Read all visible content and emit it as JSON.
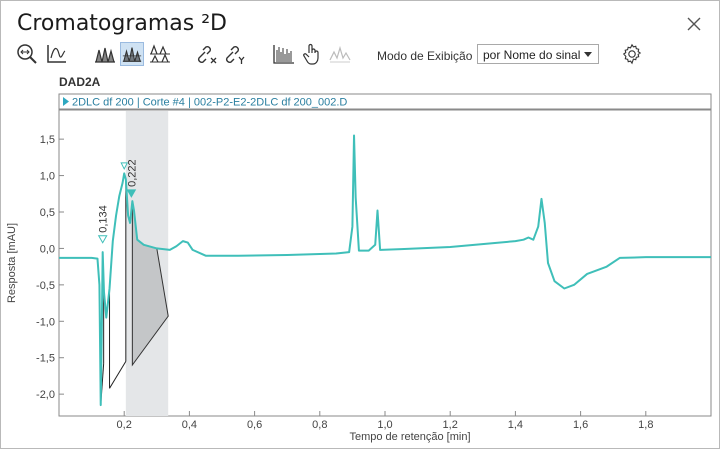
{
  "window": {
    "title": "Cromatogramas ²D"
  },
  "toolbar": {
    "display_mode_label": "Modo de Exibição",
    "display_mode_value": "por Nome do sinal"
  },
  "signal_name": "DAD2A",
  "legend": {
    "entry": "2DLC df 200 | Corte #4 | 002-P2-E2-2DLC df 200_002.D"
  },
  "colors": {
    "trace": "#3fbfb9",
    "fill": "#c4c6c8",
    "band": "#e4e6e8",
    "legend_marker": "#2fa8c0"
  },
  "chart_data": {
    "type": "line",
    "xlabel": "Tempo de retenção [min]",
    "ylabel": "Resposta [mAU]",
    "xlim": [
      0,
      2.0
    ],
    "ylim": [
      -2.3,
      1.9
    ],
    "x_ticks": [
      "0,2",
      "0,4",
      "0,6",
      "0,8",
      "1,0",
      "1,2",
      "1,4",
      "1,6",
      "1,8"
    ],
    "y_ticks": [
      "1,5",
      "1,0",
      "0,5",
      "0,0",
      "-0,5",
      "-1,0",
      "-1,5",
      "-2,0"
    ],
    "highlight_range": [
      0.205,
      0.335
    ],
    "peak_labels": [
      {
        "x": 0.134,
        "text": "0,134"
      },
      {
        "x": 0.222,
        "text": "0,222"
      }
    ],
    "series": [
      {
        "name": "2DLC df 200 | Corte #4 | 002-P2-E2-2DLC df 200_002.D",
        "points": [
          [
            0.0,
            -0.13
          ],
          [
            0.05,
            -0.13
          ],
          [
            0.1,
            -0.13
          ],
          [
            0.118,
            -0.14
          ],
          [
            0.124,
            -0.5
          ],
          [
            0.128,
            -2.15
          ],
          [
            0.131,
            -1.2
          ],
          [
            0.134,
            -0.05
          ],
          [
            0.138,
            -0.6
          ],
          [
            0.145,
            -0.95
          ],
          [
            0.155,
            -0.55
          ],
          [
            0.165,
            0.1
          ],
          [
            0.175,
            0.45
          ],
          [
            0.185,
            0.72
          ],
          [
            0.195,
            0.9
          ],
          [
            0.2,
            1.03
          ],
          [
            0.205,
            0.95
          ],
          [
            0.212,
            0.45
          ],
          [
            0.218,
            0.35
          ],
          [
            0.225,
            0.65
          ],
          [
            0.23,
            0.52
          ],
          [
            0.24,
            0.12
          ],
          [
            0.26,
            0.05
          ],
          [
            0.3,
            0.0
          ],
          [
            0.34,
            -0.02
          ],
          [
            0.36,
            0.03
          ],
          [
            0.38,
            0.1
          ],
          [
            0.395,
            0.08
          ],
          [
            0.41,
            -0.02
          ],
          [
            0.45,
            -0.1
          ],
          [
            0.55,
            -0.1
          ],
          [
            0.7,
            -0.09
          ],
          [
            0.85,
            -0.07
          ],
          [
            0.89,
            -0.05
          ],
          [
            0.9,
            0.3
          ],
          [
            0.905,
            1.55
          ],
          [
            0.91,
            0.7
          ],
          [
            0.92,
            -0.03
          ],
          [
            0.95,
            -0.03
          ],
          [
            0.97,
            0.05
          ],
          [
            0.977,
            0.52
          ],
          [
            0.985,
            -0.02
          ],
          [
            1.05,
            -0.01
          ],
          [
            1.2,
            0.02
          ],
          [
            1.35,
            0.08
          ],
          [
            1.4,
            0.1
          ],
          [
            1.425,
            0.12
          ],
          [
            1.44,
            0.15
          ],
          [
            1.455,
            0.12
          ],
          [
            1.47,
            0.3
          ],
          [
            1.48,
            0.68
          ],
          [
            1.49,
            0.35
          ],
          [
            1.5,
            -0.2
          ],
          [
            1.52,
            -0.45
          ],
          [
            1.55,
            -0.55
          ],
          [
            1.58,
            -0.5
          ],
          [
            1.62,
            -0.35
          ],
          [
            1.68,
            -0.25
          ],
          [
            1.72,
            -0.13
          ],
          [
            1.8,
            -0.12
          ],
          [
            2.0,
            -0.12
          ]
        ]
      }
    ]
  }
}
